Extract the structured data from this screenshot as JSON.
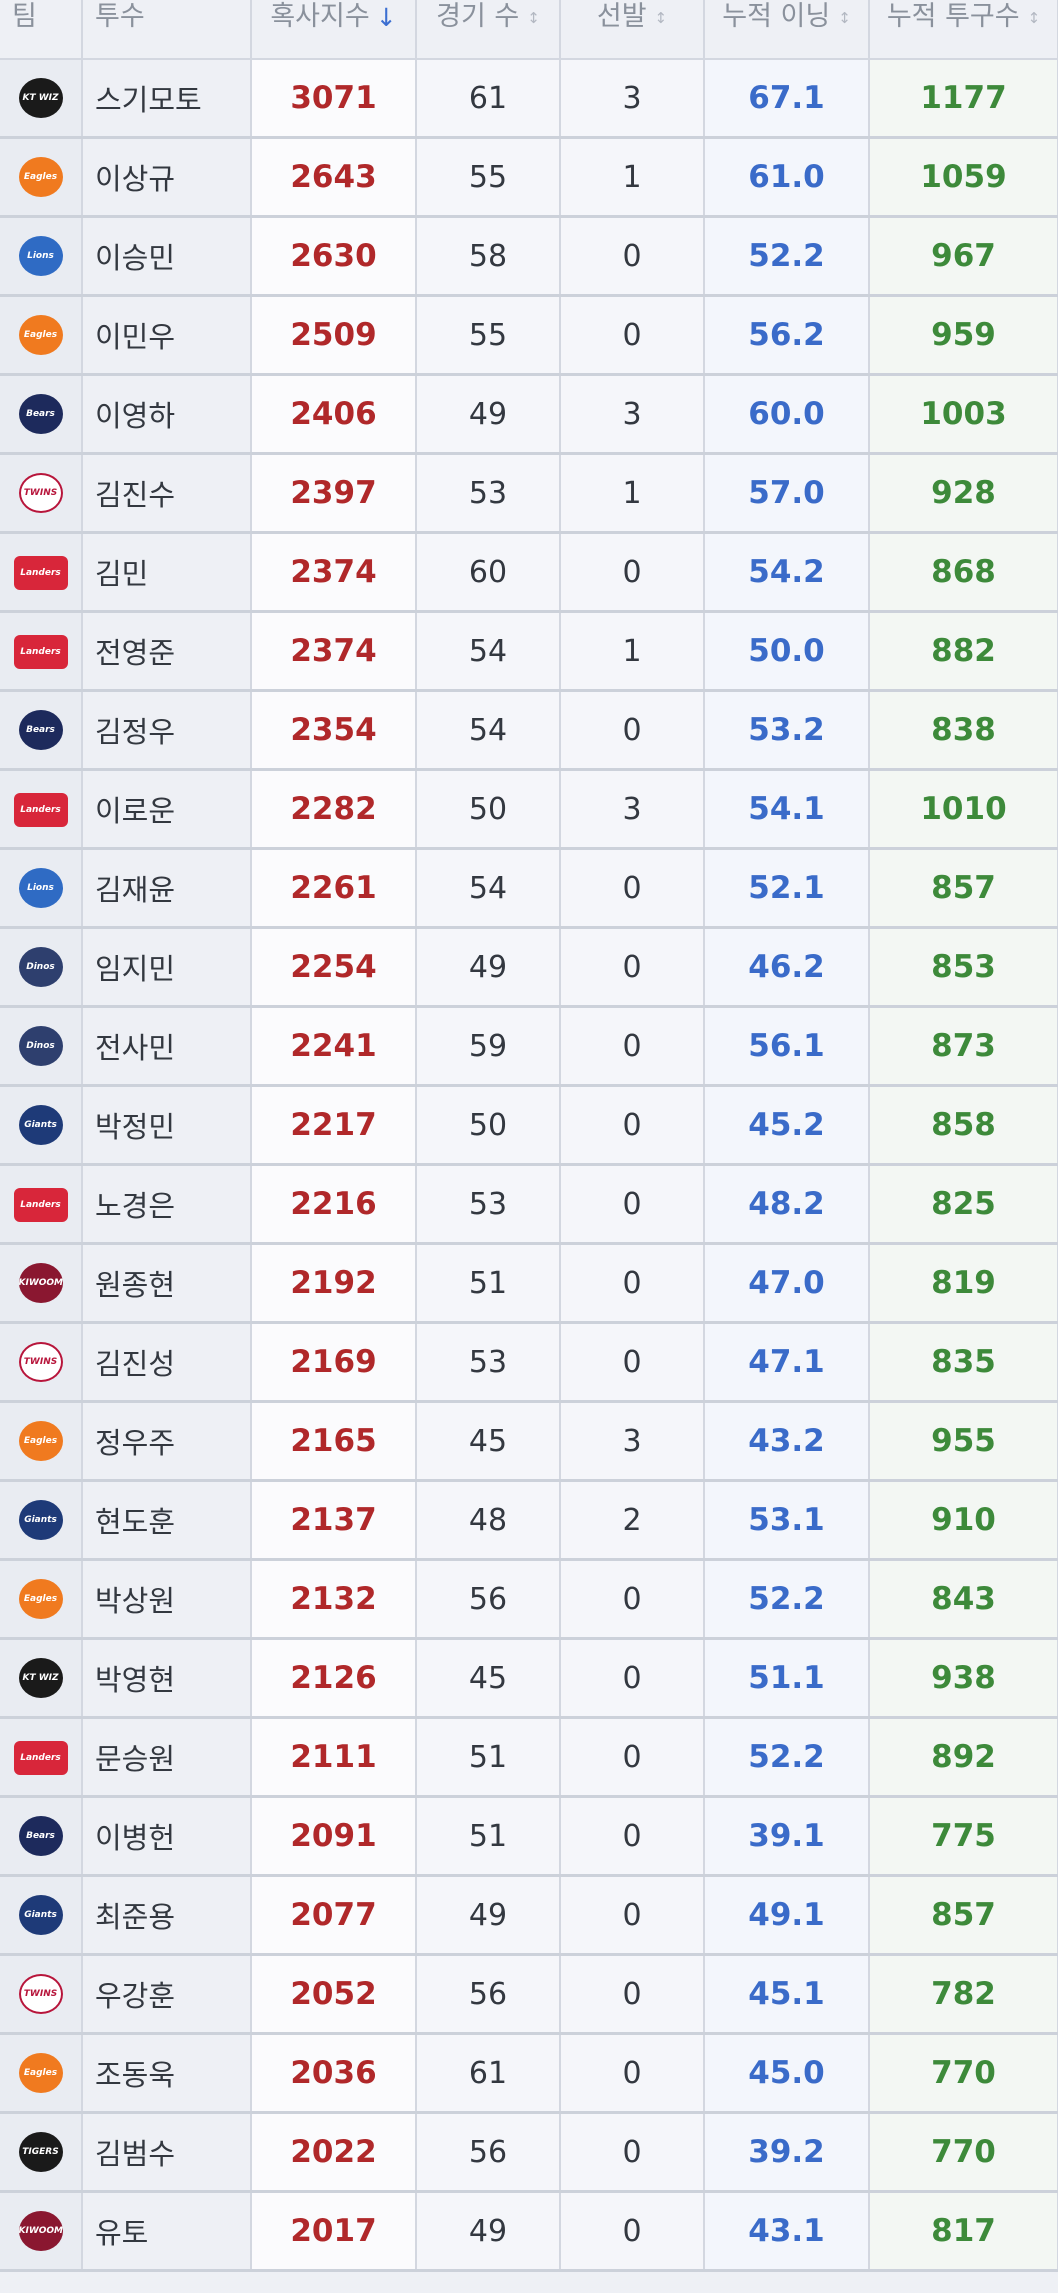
{
  "headers": {
    "team": "팀",
    "pitcher": "투수",
    "score": "혹사지수",
    "games": "경기 수",
    "starts": "선발",
    "innings": "누적 이닝",
    "pitches": "누적 투구수",
    "sort_active_icon": "↓",
    "sort_icon": "↕"
  },
  "team_logos": {
    "wiz": {
      "text": "KT WIZ",
      "bg": "#1a1a1a",
      "fg": "#ffffff"
    },
    "eagles": {
      "text": "Eagles",
      "bg": "#f07a1f",
      "fg": "#ffffff"
    },
    "lions": {
      "text": "Lions",
      "bg": "#2f6bc4",
      "fg": "#ffffff"
    },
    "bears": {
      "text": "Bears",
      "bg": "#1d2a5c",
      "fg": "#ffffff"
    },
    "twins": {
      "text": "TWINS",
      "bg": "#ffffff",
      "fg": "#b7153b"
    },
    "landers": {
      "text": "Landers",
      "bg": "#d8263a",
      "fg": "#ffffff"
    },
    "dinos": {
      "text": "Dinos",
      "bg": "#2e3f6e",
      "fg": "#ffffff"
    },
    "giants": {
      "text": "Giants",
      "bg": "#1e3a78",
      "fg": "#ffffff"
    },
    "kiwoom": {
      "text": "KIWOOM",
      "bg": "#8a1730",
      "fg": "#ffffff"
    },
    "tigers": {
      "text": "TIGERS",
      "bg": "#1a1a1a",
      "fg": "#ffffff"
    }
  },
  "rows": [
    {
      "team": "wiz",
      "name": "스기모토",
      "score": "3071",
      "games": "61",
      "starts": "3",
      "innings": "67.1",
      "pitches": "1177"
    },
    {
      "team": "eagles",
      "name": "이상규",
      "score": "2643",
      "games": "55",
      "starts": "1",
      "innings": "61.0",
      "pitches": "1059"
    },
    {
      "team": "lions",
      "name": "이승민",
      "score": "2630",
      "games": "58",
      "starts": "0",
      "innings": "52.2",
      "pitches": "967"
    },
    {
      "team": "eagles",
      "name": "이민우",
      "score": "2509",
      "games": "55",
      "starts": "0",
      "innings": "56.2",
      "pitches": "959"
    },
    {
      "team": "bears",
      "name": "이영하",
      "score": "2406",
      "games": "49",
      "starts": "3",
      "innings": "60.0",
      "pitches": "1003"
    },
    {
      "team": "twins",
      "name": "김진수",
      "score": "2397",
      "games": "53",
      "starts": "1",
      "innings": "57.0",
      "pitches": "928"
    },
    {
      "team": "landers",
      "name": "김민",
      "score": "2374",
      "games": "60",
      "starts": "0",
      "innings": "54.2",
      "pitches": "868"
    },
    {
      "team": "landers",
      "name": "전영준",
      "score": "2374",
      "games": "54",
      "starts": "1",
      "innings": "50.0",
      "pitches": "882"
    },
    {
      "team": "bears",
      "name": "김정우",
      "score": "2354",
      "games": "54",
      "starts": "0",
      "innings": "53.2",
      "pitches": "838"
    },
    {
      "team": "landers",
      "name": "이로운",
      "score": "2282",
      "games": "50",
      "starts": "3",
      "innings": "54.1",
      "pitches": "1010"
    },
    {
      "team": "lions",
      "name": "김재윤",
      "score": "2261",
      "games": "54",
      "starts": "0",
      "innings": "52.1",
      "pitches": "857"
    },
    {
      "team": "dinos",
      "name": "임지민",
      "score": "2254",
      "games": "49",
      "starts": "0",
      "innings": "46.2",
      "pitches": "853"
    },
    {
      "team": "dinos",
      "name": "전사민",
      "score": "2241",
      "games": "59",
      "starts": "0",
      "innings": "56.1",
      "pitches": "873"
    },
    {
      "team": "giants",
      "name": "박정민",
      "score": "2217",
      "games": "50",
      "starts": "0",
      "innings": "45.2",
      "pitches": "858"
    },
    {
      "team": "landers",
      "name": "노경은",
      "score": "2216",
      "games": "53",
      "starts": "0",
      "innings": "48.2",
      "pitches": "825"
    },
    {
      "team": "kiwoom",
      "name": "원종현",
      "score": "2192",
      "games": "51",
      "starts": "0",
      "innings": "47.0",
      "pitches": "819"
    },
    {
      "team": "twins",
      "name": "김진성",
      "score": "2169",
      "games": "53",
      "starts": "0",
      "innings": "47.1",
      "pitches": "835"
    },
    {
      "team": "eagles",
      "name": "정우주",
      "score": "2165",
      "games": "45",
      "starts": "3",
      "innings": "43.2",
      "pitches": "955"
    },
    {
      "team": "giants",
      "name": "현도훈",
      "score": "2137",
      "games": "48",
      "starts": "2",
      "innings": "53.1",
      "pitches": "910"
    },
    {
      "team": "eagles",
      "name": "박상원",
      "score": "2132",
      "games": "56",
      "starts": "0",
      "innings": "52.2",
      "pitches": "843"
    },
    {
      "team": "wiz",
      "name": "박영현",
      "score": "2126",
      "games": "45",
      "starts": "0",
      "innings": "51.1",
      "pitches": "938"
    },
    {
      "team": "landers",
      "name": "문승원",
      "score": "2111",
      "games": "51",
      "starts": "0",
      "innings": "52.2",
      "pitches": "892"
    },
    {
      "team": "bears",
      "name": "이병헌",
      "score": "2091",
      "games": "51",
      "starts": "0",
      "innings": "39.1",
      "pitches": "775"
    },
    {
      "team": "giants",
      "name": "최준용",
      "score": "2077",
      "games": "49",
      "starts": "0",
      "innings": "49.1",
      "pitches": "857"
    },
    {
      "team": "twins",
      "name": "우강훈",
      "score": "2052",
      "games": "56",
      "starts": "0",
      "innings": "45.1",
      "pitches": "782"
    },
    {
      "team": "eagles",
      "name": "조동욱",
      "score": "2036",
      "games": "61",
      "starts": "0",
      "innings": "45.0",
      "pitches": "770"
    },
    {
      "team": "tigers",
      "name": "김범수",
      "score": "2022",
      "games": "56",
      "starts": "0",
      "innings": "39.2",
      "pitches": "770"
    },
    {
      "team": "kiwoom",
      "name": "유토",
      "score": "2017",
      "games": "49",
      "starts": "0",
      "innings": "43.1",
      "pitches": "817"
    }
  ]
}
